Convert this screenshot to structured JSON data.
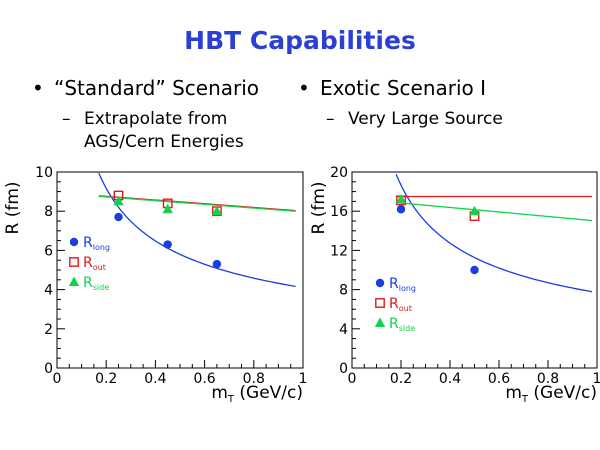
{
  "slide": {
    "title": "HBT Capabilities",
    "left_bullet": "“Standard” Scenario",
    "left_sub_line1": "Extrapolate from",
    "left_sub_line2": "AGS/Cern Energies",
    "right_bullet": "Exotic Scenario I",
    "right_sub_line1": "Very Large Source",
    "bullet_glyph": "•",
    "dash_glyph": "–"
  },
  "chart_data": [
    {
      "type": "scatter",
      "xlabel_main": "m",
      "xlabel_sub": "T",
      "xlabel_rest": " (GeV/c)",
      "ylabel": "R (fm)",
      "xlim": [
        0,
        1
      ],
      "ylim": [
        0,
        10
      ],
      "xticks": [
        0,
        0.2,
        0.4,
        0.6,
        0.8,
        1
      ],
      "xtick_labels": [
        "0",
        "0.2",
        "0.4",
        "0.6",
        "0.8",
        "1"
      ],
      "yticks": [
        0,
        2,
        4,
        6,
        8,
        10
      ],
      "ytick_labels": [
        "0",
        "2",
        "4",
        "6",
        "8",
        "10"
      ],
      "legend_placement": "left",
      "series": [
        {
          "name": "R",
          "sub": "long",
          "marker": "circle",
          "color": "#1a3fe0",
          "x": [
            0.25,
            0.45,
            0.65
          ],
          "y": [
            7.7,
            6.3,
            5.3
          ]
        },
        {
          "name": "R",
          "sub": "out",
          "marker": "square-open",
          "color": "#e01a1a",
          "x": [
            0.25,
            0.45,
            0.65
          ],
          "y": [
            8.8,
            8.4,
            8.0
          ]
        },
        {
          "name": "R",
          "sub": "side",
          "marker": "triangle",
          "color": "#12d14a",
          "x": [
            0.25,
            0.45,
            0.65
          ],
          "y": [
            8.5,
            8.1,
            8.0
          ]
        }
      ],
      "curves": [
        {
          "color": "#1a3fe0",
          "form": "power",
          "a": 4.1,
          "p": 0.5,
          "x0": 0.17,
          "x1": 0.97
        },
        {
          "color": "#e01a1a",
          "form": "linear",
          "a": 8.95,
          "b": -0.95,
          "x0": 0.17,
          "x1": 0.97
        },
        {
          "color": "#12d14a",
          "form": "linear",
          "a": 8.92,
          "b": -0.95,
          "x0": 0.17,
          "x1": 0.97
        }
      ]
    },
    {
      "type": "scatter",
      "xlabel_main": "m",
      "xlabel_sub": "T",
      "xlabel_rest": " (GeV/c)",
      "ylabel": "R (fm)",
      "xlim": [
        0,
        1
      ],
      "ylim": [
        0,
        20
      ],
      "xticks": [
        0,
        0.2,
        0.4,
        0.6,
        0.8,
        1
      ],
      "xtick_labels": [
        "0",
        "0.2",
        "0.4",
        "0.6",
        "0.8",
        "1"
      ],
      "yticks": [
        0,
        4,
        8,
        12,
        16,
        20
      ],
      "ytick_labels": [
        "0",
        "4",
        "8",
        "12",
        "16",
        "20"
      ],
      "legend_placement": "bottom-left",
      "series": [
        {
          "name": "R",
          "sub": "long",
          "marker": "circle",
          "color": "#1a3fe0",
          "x": [
            0.2,
            0.5
          ],
          "y": [
            16.2,
            10.0
          ]
        },
        {
          "name": "R",
          "sub": "out",
          "marker": "square-open",
          "color": "#e01a1a",
          "x": [
            0.2,
            0.5
          ],
          "y": [
            17.1,
            15.5
          ]
        },
        {
          "name": "R",
          "sub": "side",
          "marker": "triangle",
          "color": "#12d14a",
          "x": [
            0.2,
            0.5
          ],
          "y": [
            17.2,
            16.0
          ]
        }
      ],
      "curves": [
        {
          "color": "#1a3fe0",
          "form": "power",
          "a": 7.7,
          "p": 0.55,
          "x0": 0.18,
          "x1": 0.98
        },
        {
          "color": "#e01a1a",
          "form": "linear",
          "a": 17.5,
          "b": 0,
          "x0": 0.18,
          "x1": 0.98
        },
        {
          "color": "#12d14a",
          "form": "linear",
          "a": 17.3,
          "b": -2.3,
          "x0": 0.18,
          "x1": 0.98
        }
      ]
    }
  ]
}
